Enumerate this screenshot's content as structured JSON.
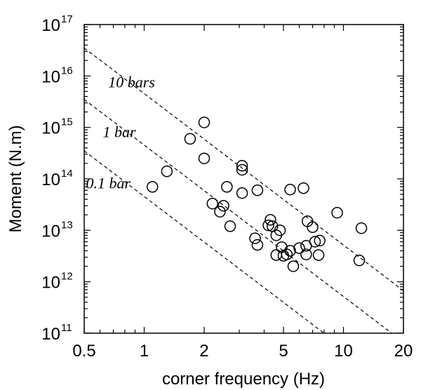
{
  "chart_data": {
    "type": "scatter",
    "xlabel": "corner frequency (Hz)",
    "ylabel": "Moment (N.m)",
    "xscale": "log",
    "yscale": "log",
    "xlim": [
      0.5,
      20
    ],
    "ylim": [
      100000000000.0,
      1e+17
    ],
    "xticks": [
      {
        "value": 0.5,
        "label": "0.5"
      },
      {
        "value": 1,
        "label": "1"
      },
      {
        "value": 2,
        "label": "2"
      },
      {
        "value": 5,
        "label": "5"
      },
      {
        "value": 10,
        "label": "10"
      },
      {
        "value": 20,
        "label": "20"
      }
    ],
    "yticks": [
      {
        "value": 100000000000.0,
        "label": "10",
        "exp": "11"
      },
      {
        "value": 1000000000000.0,
        "label": "10",
        "exp": "12"
      },
      {
        "value": 10000000000000.0,
        "label": "10",
        "exp": "13"
      },
      {
        "value": 100000000000000.0,
        "label": "10",
        "exp": "14"
      },
      {
        "value": 1000000000000000.0,
        "label": "10",
        "exp": "15"
      },
      {
        "value": 1e+16,
        "label": "10",
        "exp": "16"
      },
      {
        "value": 1e+17,
        "label": "10",
        "exp": "17"
      }
    ],
    "marker": "open-circle",
    "points": [
      {
        "x": 1.1,
        "y": 70000000000000.0
      },
      {
        "x": 1.3,
        "y": 140000000000000.0
      },
      {
        "x": 1.7,
        "y": 600000000000000.0
      },
      {
        "x": 2.0,
        "y": 1250000000000000.0
      },
      {
        "x": 2.0,
        "y": 250000000000000.0
      },
      {
        "x": 2.2,
        "y": 33000000000000.0
      },
      {
        "x": 2.4,
        "y": 23000000000000.0
      },
      {
        "x": 2.5,
        "y": 30000000000000.0
      },
      {
        "x": 2.6,
        "y": 70000000000000.0
      },
      {
        "x": 2.7,
        "y": 12000000000000.0
      },
      {
        "x": 3.1,
        "y": 180000000000000.0
      },
      {
        "x": 3.1,
        "y": 150000000000000.0
      },
      {
        "x": 3.1,
        "y": 53000000000000.0
      },
      {
        "x": 3.6,
        "y": 7000000000000.0
      },
      {
        "x": 3.7,
        "y": 5200000000000.0
      },
      {
        "x": 3.7,
        "y": 60000000000000.0
      },
      {
        "x": 4.2,
        "y": 12500000000000.0
      },
      {
        "x": 4.3,
        "y": 16000000000000.0
      },
      {
        "x": 4.4,
        "y": 12000000000000.0
      },
      {
        "x": 4.6,
        "y": 8000000000000.0
      },
      {
        "x": 4.6,
        "y": 3300000000000.0
      },
      {
        "x": 4.8,
        "y": 10000000000000.0
      },
      {
        "x": 4.9,
        "y": 4700000000000.0
      },
      {
        "x": 5.0,
        "y": 3200000000000.0
      },
      {
        "x": 5.2,
        "y": 3400000000000.0
      },
      {
        "x": 5.4,
        "y": 4000000000000.0
      },
      {
        "x": 5.4,
        "y": 62000000000000.0
      },
      {
        "x": 5.6,
        "y": 2000000000000.0
      },
      {
        "x": 6.0,
        "y": 4500000000000.0
      },
      {
        "x": 6.3,
        "y": 66000000000000.0
      },
      {
        "x": 6.5,
        "y": 5000000000000.0
      },
      {
        "x": 6.5,
        "y": 3400000000000.0
      },
      {
        "x": 6.6,
        "y": 15000000000000.0
      },
      {
        "x": 7.0,
        "y": 11500000000000.0
      },
      {
        "x": 7.2,
        "y": 6000000000000.0
      },
      {
        "x": 7.5,
        "y": 3300000000000.0
      },
      {
        "x": 7.6,
        "y": 6300000000000.0
      },
      {
        "x": 9.3,
        "y": 22000000000000.0
      },
      {
        "x": 12.0,
        "y": 2600000000000.0
      },
      {
        "x": 12.3,
        "y": 11000000000000.0
      }
    ],
    "reference_lines": [
      {
        "label": "10 bars",
        "points": [
          [
            0.5,
            3.5e+16
          ],
          [
            20,
            670000000000.0
          ]
        ],
        "style": "dashed"
      },
      {
        "label": "1 bar",
        "points": [
          [
            0.5,
            3500000000000000.0
          ],
          [
            20,
            67000000000.0
          ]
        ],
        "style": "dashed"
      },
      {
        "label": "0.1 bar",
        "points": [
          [
            0.5,
            350000000000000.0
          ],
          [
            20,
            6700000000.0
          ]
        ],
        "style": "dashed"
      }
    ]
  }
}
